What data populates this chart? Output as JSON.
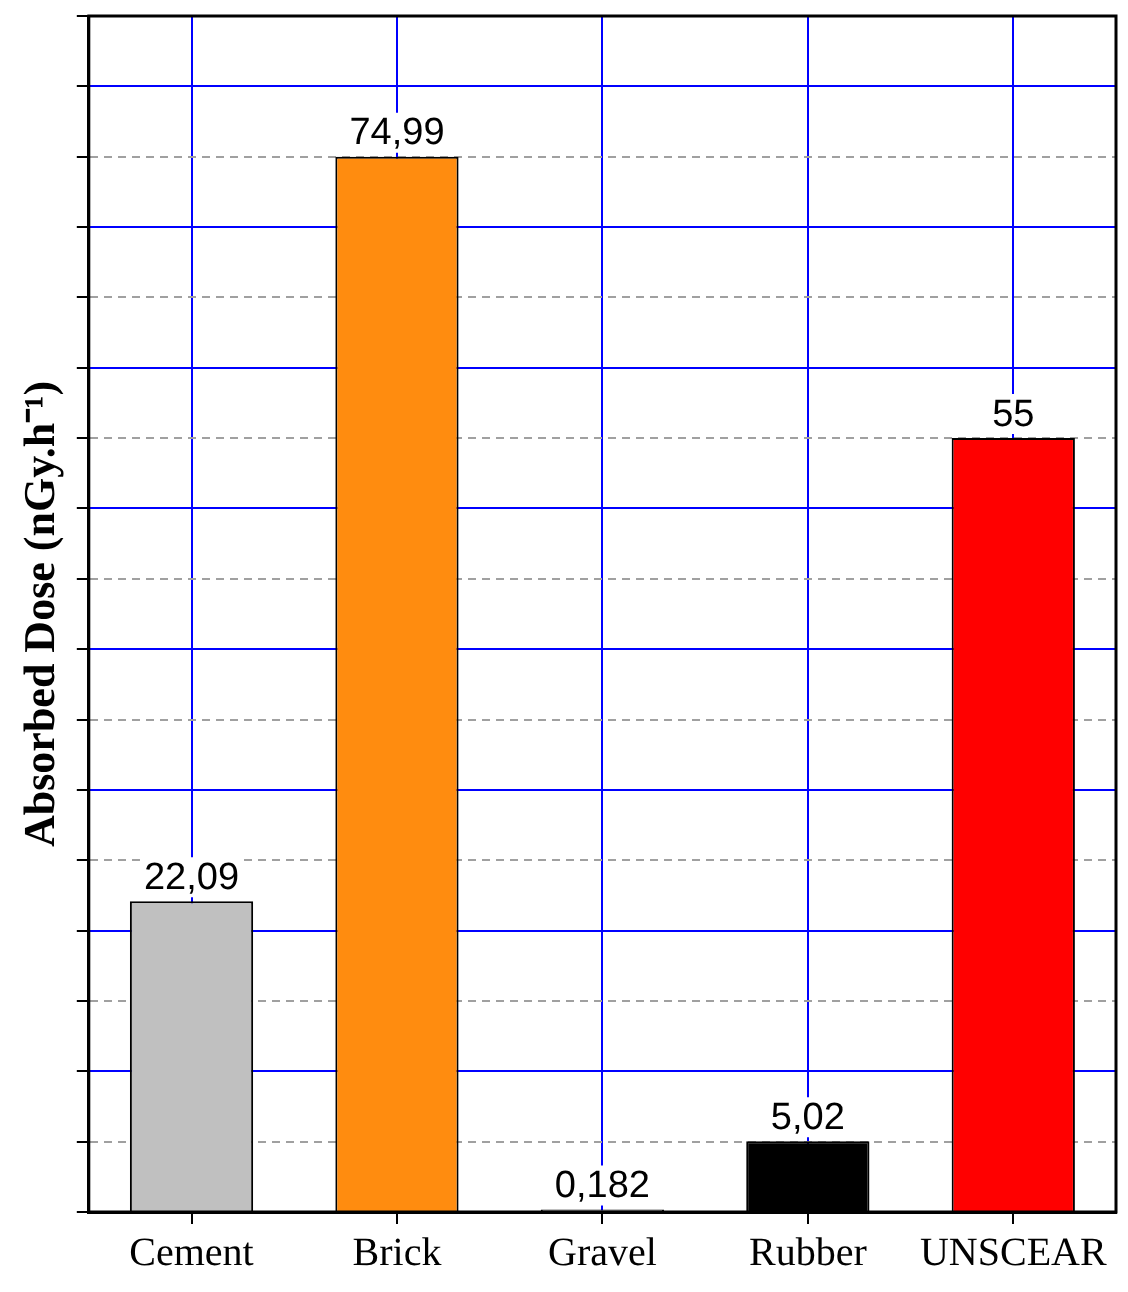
{
  "chart_data": {
    "type": "bar",
    "ylabel": "Absorbed Dose (nGy.h⁻¹)",
    "categories": [
      "Cement",
      "Brick",
      "Gravel",
      "Rubber",
      "UNSCEAR"
    ],
    "values": [
      22.09,
      74.99,
      0.182,
      5.02,
      55
    ],
    "colors": [
      "#c0c0c0",
      "#ff8c0f",
      "#808080",
      "#000000",
      "#ff0000"
    ],
    "value_labels": [
      "22,09",
      "74,99",
      "0,182",
      "5,02",
      "55"
    ],
    "ylim": [
      0,
      85
    ],
    "yticks": [
      {
        "value": 0,
        "label": null
      },
      {
        "value": 5,
        "label": null
      },
      {
        "value": 10,
        "label": null
      },
      {
        "value": 15,
        "label": null
      },
      {
        "value": 20,
        "label": null
      },
      {
        "value": 25,
        "label": null
      },
      {
        "value": 30,
        "label": null
      },
      {
        "value": 35,
        "label": null
      },
      {
        "value": 40,
        "label": null
      },
      {
        "value": 45,
        "label": null
      },
      {
        "value": 50,
        "label": null
      },
      {
        "value": 55,
        "label": null
      },
      {
        "value": 60,
        "label": null
      },
      {
        "value": 65,
        "label": null
      },
      {
        "value": 70,
        "label": null
      },
      {
        "value": 75,
        "label": null
      },
      {
        "value": 80,
        "label": null
      },
      {
        "value": 85,
        "label": null
      }
    ],
    "grid": true,
    "legend": false,
    "tick_labels": "x"
  }
}
